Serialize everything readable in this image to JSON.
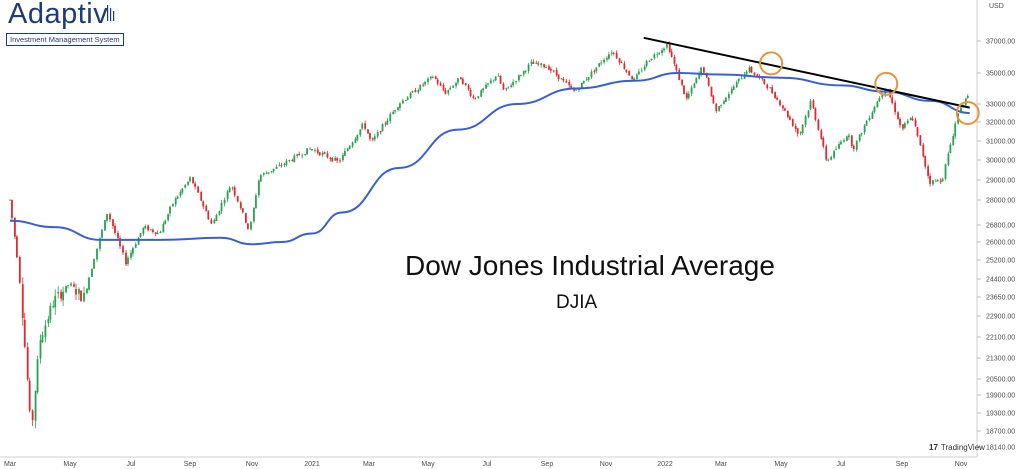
{
  "logo": {
    "word": "Adaptiv",
    "tagline": "Investment Management System"
  },
  "watermark": "TradingView",
  "chart_data": {
    "type": "candlestick",
    "title": "Dow Jones Industrial Average",
    "subtitle": "DJIA",
    "y_unit": "USD",
    "y_axis_side": "right",
    "y_ticks": [
      "37000.00",
      "35000.00",
      "33000.00",
      "32000.00",
      "31000.00",
      "30000.00",
      "29000.00",
      "28000.00",
      "26800.00",
      "26000.00",
      "25200.00",
      "24400.00",
      "23650.00",
      "22900.00",
      "22100.00",
      "21300.00",
      "20500.00",
      "19900.00",
      "19300.00",
      "18700.00",
      "18140.00"
    ],
    "x_ticks": [
      "Mar",
      "May",
      "Jul",
      "Sep",
      "Nov",
      "2021",
      "Mar",
      "May",
      "Jul",
      "Sep",
      "Nov",
      "2022",
      "Mar",
      "May",
      "Jul",
      "Sep",
      "Nov"
    ],
    "x_range": [
      "2020-03",
      "2022-11"
    ],
    "price_path": [
      [
        "2020-03-01",
        28000
      ],
      [
        "2020-03-10",
        25000
      ],
      [
        "2020-03-23",
        18600
      ],
      [
        "2020-04-01",
        22000
      ],
      [
        "2020-04-15",
        23500
      ],
      [
        "2020-05-01",
        24200
      ],
      [
        "2020-05-15",
        23600
      ],
      [
        "2020-06-08",
        27400
      ],
      [
        "2020-06-26",
        25100
      ],
      [
        "2020-07-15",
        26700
      ],
      [
        "2020-07-31",
        26400
      ],
      [
        "2020-08-15",
        27900
      ],
      [
        "2020-09-02",
        29100
      ],
      [
        "2020-09-23",
        26800
      ],
      [
        "2020-10-12",
        28800
      ],
      [
        "2020-10-30",
        26500
      ],
      [
        "2020-11-09",
        29200
      ],
      [
        "2020-11-30",
        29700
      ],
      [
        "2020-12-31",
        30600
      ],
      [
        "2021-01-29",
        29900
      ],
      [
        "2021-02-24",
        31900
      ],
      [
        "2021-03-04",
        30900
      ],
      [
        "2021-04-01",
        33000
      ],
      [
        "2021-05-07",
        34800
      ],
      [
        "2021-05-19",
        33700
      ],
      [
        "2021-06-04",
        34700
      ],
      [
        "2021-06-18",
        33300
      ],
      [
        "2021-07-12",
        34900
      ],
      [
        "2021-07-19",
        33800
      ],
      [
        "2021-08-16",
        35600
      ],
      [
        "2021-09-02",
        35400
      ],
      [
        "2021-09-30",
        33800
      ],
      [
        "2021-10-29",
        35800
      ],
      [
        "2021-11-08",
        36400
      ],
      [
        "2021-11-30",
        34500
      ],
      [
        "2021-12-15",
        35800
      ],
      [
        "2022-01-04",
        36800
      ],
      [
        "2022-01-24",
        33300
      ],
      [
        "2022-02-10",
        35400
      ],
      [
        "2022-02-24",
        32600
      ],
      [
        "2022-03-29",
        35300
      ],
      [
        "2022-04-14",
        34400
      ],
      [
        "2022-04-22",
        33800
      ],
      [
        "2022-05-20",
        31300
      ],
      [
        "2022-06-01",
        33200
      ],
      [
        "2022-06-17",
        29900
      ],
      [
        "2022-07-08",
        31400
      ],
      [
        "2022-07-14",
        30600
      ],
      [
        "2022-08-16",
        34100
      ],
      [
        "2022-09-01",
        31600
      ],
      [
        "2022-09-12",
        32300
      ],
      [
        "2022-09-30",
        28900
      ],
      [
        "2022-10-13",
        29000
      ],
      [
        "2022-10-31",
        32800
      ],
      [
        "2022-11-10",
        33500
      ]
    ],
    "moving_average": {
      "color": "#3860d6",
      "points": [
        [
          "2020-03-01",
          27000
        ],
        [
          "2020-04-15",
          26700
        ],
        [
          "2020-06-01",
          26100
        ],
        [
          "2020-08-01",
          26100
        ],
        [
          "2020-10-01",
          26200
        ],
        [
          "2020-11-01",
          25900
        ],
        [
          "2020-12-01",
          26000
        ],
        [
          "2021-01-01",
          26400
        ],
        [
          "2021-02-01",
          27400
        ],
        [
          "2021-04-01",
          29600
        ],
        [
          "2021-06-01",
          31600
        ],
        [
          "2021-08-01",
          33000
        ],
        [
          "2021-10-01",
          34000
        ],
        [
          "2021-12-01",
          34500
        ],
        [
          "2022-01-15",
          35000
        ],
        [
          "2022-03-01",
          34900
        ],
        [
          "2022-05-01",
          34700
        ],
        [
          "2022-07-01",
          34200
        ],
        [
          "2022-08-15",
          33800
        ],
        [
          "2022-10-01",
          33200
        ],
        [
          "2022-11-10",
          32500
        ]
      ]
    },
    "trendline": {
      "color": "#000000",
      "from": [
        "2021-12-10",
        37200
      ],
      "to": [
        "2022-11-10",
        32800
      ]
    },
    "touch_points": [
      {
        "date": "2022-04-21",
        "value": 35600
      },
      {
        "date": "2022-08-16",
        "value": 34300
      },
      {
        "date": "2022-11-08",
        "value": 32500
      }
    ],
    "colors": {
      "up": "#26a34f",
      "down": "#e0282e",
      "highlight": "#e8933a"
    },
    "grid": false,
    "legend": "none"
  }
}
